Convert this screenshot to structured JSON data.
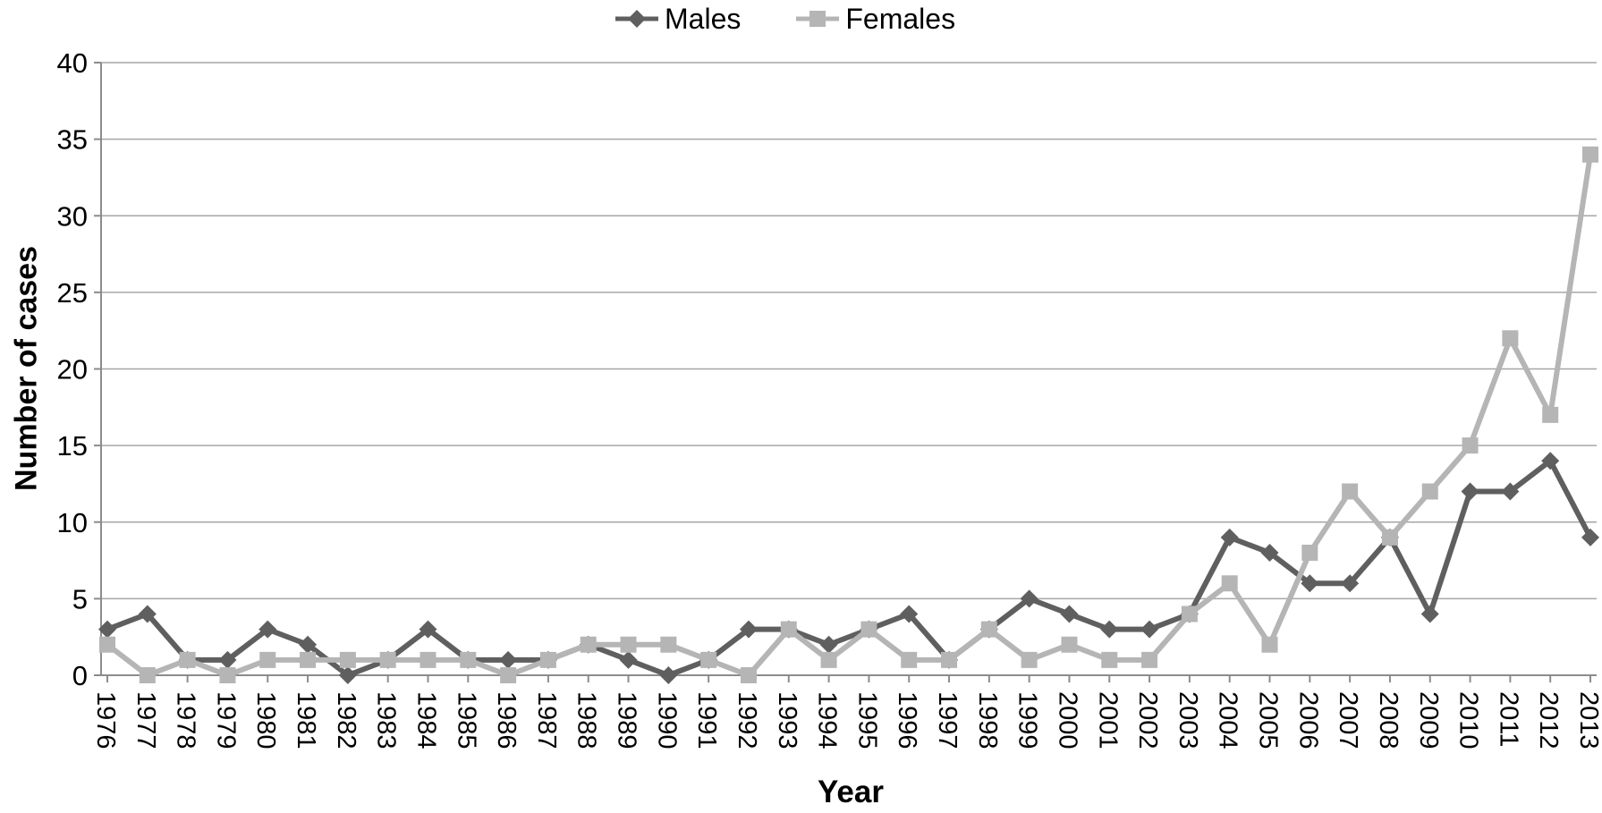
{
  "chart_data": {
    "type": "line",
    "title": "",
    "xlabel": "Year",
    "ylabel": "Number of cases",
    "x": [
      1976,
      1977,
      1978,
      1979,
      1980,
      1981,
      1982,
      1983,
      1984,
      1985,
      1986,
      1987,
      1988,
      1989,
      1990,
      1991,
      1992,
      1993,
      1994,
      1995,
      1996,
      1997,
      1998,
      1999,
      2000,
      2001,
      2002,
      2003,
      2004,
      2005,
      2006,
      2007,
      2008,
      2009,
      2010,
      2011,
      2012,
      2013
    ],
    "series": [
      {
        "name": "Males",
        "marker": "diamond",
        "color": "#5F5F5F",
        "values": [
          3,
          4,
          1,
          1,
          3,
          2,
          0,
          1,
          3,
          1,
          1,
          1,
          2,
          1,
          0,
          1,
          3,
          3,
          2,
          3,
          4,
          1,
          3,
          5,
          4,
          3,
          3,
          4,
          9,
          8,
          6,
          6,
          9,
          4,
          12,
          12,
          14,
          9
        ]
      },
      {
        "name": "Females",
        "marker": "square",
        "color": "#B5B5B5",
        "values": [
          2,
          0,
          1,
          0,
          1,
          1,
          1,
          1,
          1,
          1,
          0,
          1,
          2,
          2,
          2,
          1,
          0,
          3,
          1,
          3,
          1,
          1,
          3,
          1,
          2,
          1,
          1,
          4,
          6,
          2,
          8,
          12,
          9,
          12,
          15,
          22,
          17,
          34
        ]
      }
    ],
    "ylim": [
      0,
      40
    ],
    "yticks": [
      0,
      5,
      10,
      15,
      20,
      25,
      30,
      35,
      40
    ],
    "grid": "horizontal",
    "legend_position": "top-center",
    "colors": {
      "gridline": "#A6A6A6",
      "axis": "#8C8C8C",
      "tick_label": "#000000"
    }
  }
}
